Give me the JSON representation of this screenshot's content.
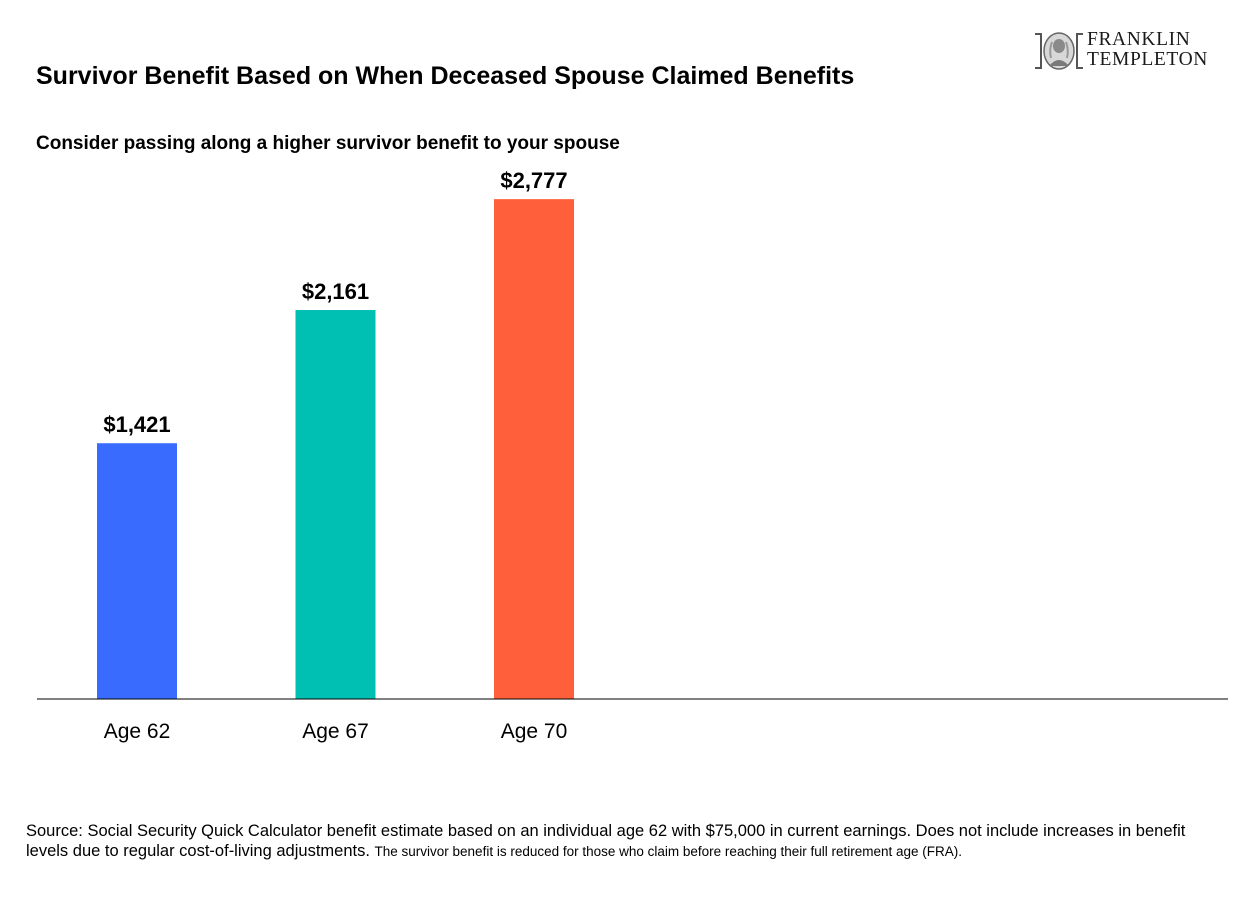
{
  "title": "Survivor Benefit Based on When Deceased Spouse Claimed Benefits",
  "subtitle": "Consider passing along a higher survivor benefit to your spouse",
  "logo": {
    "line1": "FRANKLIN",
    "line2": "TEMPLETON",
    "icon": "benjamin-franklin-portrait-icon"
  },
  "chart_data": {
    "type": "bar",
    "categories": [
      "Age 62",
      "Age 67",
      "Age 70"
    ],
    "values": [
      1421,
      2161,
      2777
    ],
    "value_labels": [
      "$1,421",
      "$2,161",
      "$2,777"
    ],
    "colors": [
      "#3a6bff",
      "#00bfb3",
      "#ff5f3a"
    ],
    "ylim": [
      0,
      3700
    ],
    "grid": false,
    "xlabel": "",
    "ylabel": ""
  },
  "source": {
    "main": "Source: Social Security Quick Calculator benefit estimate based on an individual age 62 with $75,000 in current earnings. Does not include increases in benefit levels due to regular cost-of-living adjustments.",
    "note": "The survivor benefit is reduced for those who claim before reaching their full retirement age (FRA)."
  }
}
